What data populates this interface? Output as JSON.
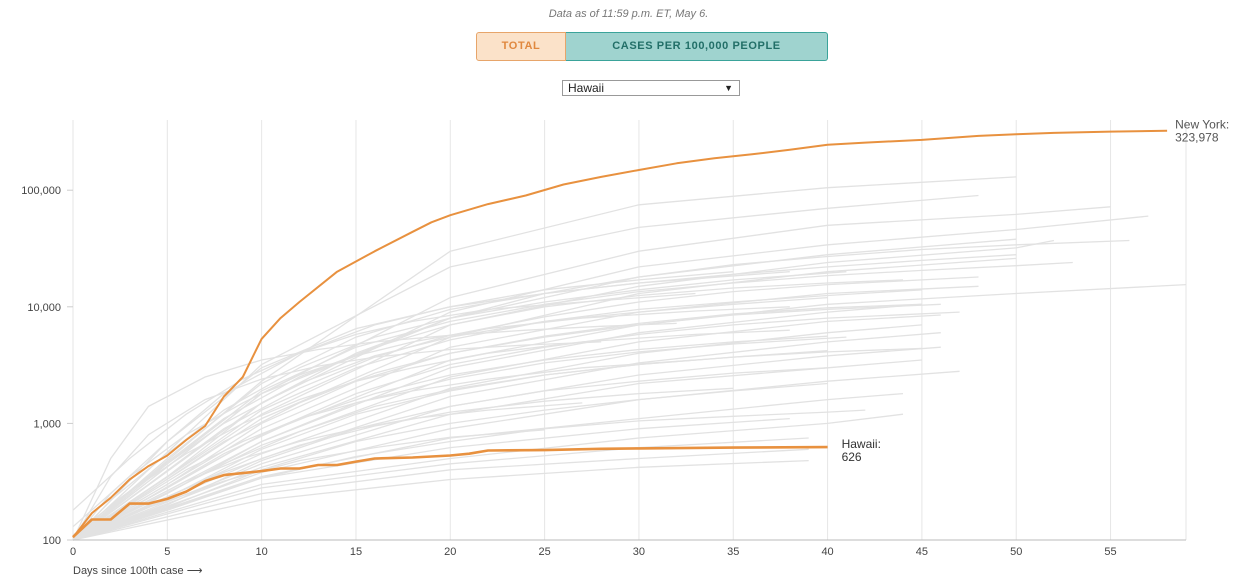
{
  "header": {
    "as_of": "Data as of 11:59 p.m. ET, May 6."
  },
  "toggle": {
    "total_label": "TOTAL",
    "per_capita_label": "CASES PER 100,000 PEOPLE",
    "active": "TOTAL",
    "colors": {
      "total": "#e0883e",
      "per_capita": "#226f68"
    }
  },
  "state_select": {
    "value": "Hawaii"
  },
  "chart_data": {
    "type": "line",
    "title": "",
    "xlabel": "Days since 100th case ⟶",
    "ylabel": "",
    "y_scale": "log",
    "xlim": [
      0,
      59
    ],
    "ylim": [
      100,
      400000
    ],
    "x_ticks": [
      0,
      5,
      10,
      15,
      20,
      25,
      30,
      35,
      40,
      45,
      50,
      55
    ],
    "y_ticks": [
      100,
      1000,
      10000,
      100000
    ],
    "y_tick_labels": [
      "100",
      "1,000",
      "10,000",
      "100,000"
    ],
    "grid": "vertical",
    "highlight_color": "#e8913f",
    "background_color": "#e2e2e2",
    "highlighted_series": [
      {
        "name": "New York",
        "end_label": "New York:",
        "end_value": "323,978",
        "x": [
          0,
          1,
          2,
          3,
          4,
          5,
          6,
          7,
          8,
          9,
          10,
          11,
          12,
          14,
          16,
          18,
          19,
          20,
          22,
          24,
          26,
          28,
          30,
          32,
          34,
          36,
          38,
          40,
          42,
          45,
          48,
          50,
          52,
          55,
          58
        ],
        "y": [
          105,
          170,
          230,
          330,
          430,
          530,
          720,
          950,
          1700,
          2500,
          5300,
          8000,
          11000,
          20000,
          30000,
          44000,
          53000,
          61000,
          76000,
          90000,
          112000,
          130000,
          149000,
          170000,
          188000,
          203000,
          222000,
          245000,
          256000,
          270000,
          292000,
          302000,
          310000,
          318000,
          323978
        ]
      },
      {
        "name": "Hawaii",
        "end_label": "Hawaii:",
        "end_value": "626",
        "x": [
          0,
          1,
          2,
          3,
          4,
          5,
          6,
          7,
          8,
          9,
          10,
          11,
          12,
          13,
          14,
          15,
          16,
          18,
          20,
          21,
          22,
          25,
          28,
          30,
          35,
          40
        ],
        "y": [
          106,
          150,
          150,
          205,
          205,
          225,
          260,
          320,
          360,
          375,
          390,
          410,
          410,
          440,
          440,
          470,
          500,
          510,
          530,
          550,
          585,
          590,
          605,
          610,
          620,
          626
        ]
      }
    ],
    "background_series": [
      {
        "x": [
          0,
          10,
          20,
          30,
          40,
          50
        ],
        "y": [
          100,
          2300,
          30000,
          75000,
          105000,
          130000
        ]
      },
      {
        "x": [
          0,
          10,
          20,
          30,
          40,
          48
        ],
        "y": [
          100,
          3200,
          22000,
          48000,
          70000,
          90000
        ]
      },
      {
        "x": [
          0,
          10,
          20,
          30,
          40,
          50,
          55
        ],
        "y": [
          100,
          1800,
          12000,
          30000,
          50000,
          62000,
          72000
        ]
      },
      {
        "x": [
          0,
          10,
          20,
          30,
          40,
          50,
          57
        ],
        "y": [
          100,
          1500,
          9000,
          22000,
          34000,
          46000,
          60000
        ]
      },
      {
        "x": [
          0,
          10,
          20,
          30,
          40,
          50
        ],
        "y": [
          100,
          1800,
          8000,
          18000,
          28000,
          38000
        ]
      },
      {
        "x": [
          0,
          10,
          20,
          30,
          40,
          50,
          52
        ],
        "y": [
          100,
          1200,
          7000,
          15000,
          24000,
          32000,
          37000
        ]
      },
      {
        "x": [
          0,
          10,
          20,
          30,
          40,
          50
        ],
        "y": [
          100,
          1100,
          5500,
          13000,
          20000,
          26000
        ]
      },
      {
        "x": [
          0,
          10,
          20,
          30,
          40,
          50,
          59
        ],
        "y": [
          100,
          800,
          3500,
          7000,
          10500,
          13000,
          15500
        ]
      },
      {
        "x": [
          0,
          10,
          20,
          30,
          40,
          48
        ],
        "y": [
          100,
          900,
          4500,
          9000,
          13000,
          15000
        ]
      },
      {
        "x": [
          0,
          10,
          20,
          30,
          40,
          45
        ],
        "y": [
          100,
          700,
          3000,
          6000,
          9000,
          10500
        ]
      },
      {
        "x": [
          0,
          10,
          20,
          30,
          40,
          46
        ],
        "y": [
          100,
          650,
          2500,
          5000,
          7500,
          8500
        ]
      },
      {
        "x": [
          0,
          10,
          20,
          30,
          40,
          45
        ],
        "y": [
          100,
          550,
          2000,
          4000,
          6000,
          7000
        ]
      },
      {
        "x": [
          0,
          10,
          20,
          30,
          40,
          46
        ],
        "y": [
          100,
          500,
          1700,
          3300,
          5000,
          6000
        ]
      },
      {
        "x": [
          0,
          10,
          20,
          30,
          40,
          46
        ],
        "y": [
          100,
          450,
          1400,
          2600,
          3800,
          4500
        ]
      },
      {
        "x": [
          0,
          10,
          20,
          30,
          40,
          45
        ],
        "y": [
          100,
          420,
          1200,
          2200,
          3000,
          3500
        ]
      },
      {
        "x": [
          0,
          10,
          20,
          30,
          40,
          47
        ],
        "y": [
          100,
          380,
          900,
          1600,
          2300,
          2800
        ]
      },
      {
        "x": [
          0,
          10,
          20,
          30,
          40,
          44
        ],
        "y": [
          100,
          350,
          750,
          1100,
          1600,
          1800
        ]
      },
      {
        "x": [
          0,
          10,
          20,
          30,
          38
        ],
        "y": [
          100,
          340,
          620,
          900,
          1100
        ]
      },
      {
        "x": [
          0,
          10,
          20,
          30,
          40,
          44
        ],
        "y": [
          100,
          300,
          500,
          750,
          1000,
          1200
        ]
      },
      {
        "x": [
          0,
          10,
          20,
          30,
          39
        ],
        "y": [
          100,
          280,
          450,
          620,
          750
        ]
      },
      {
        "x": [
          0,
          10,
          20,
          30,
          39
        ],
        "y": [
          100,
          250,
          400,
          500,
          600
        ]
      },
      {
        "x": [
          0,
          10,
          20,
          30,
          39
        ],
        "y": [
          100,
          220,
          330,
          420,
          480
        ]
      },
      {
        "x": [
          0,
          5,
          10,
          15,
          20,
          25,
          30,
          38
        ],
        "y": [
          100,
          700,
          3000,
          6500,
          10000,
          13000,
          16000,
          20000
        ]
      },
      {
        "x": [
          0,
          5,
          10,
          15,
          20,
          25,
          30,
          35,
          40,
          45,
          50
        ],
        "y": [
          100,
          500,
          2200,
          5500,
          9500,
          13000,
          16000,
          19000,
          22000,
          25000,
          28000
        ]
      },
      {
        "x": [
          0,
          5,
          10,
          15,
          20,
          25,
          30,
          35,
          40,
          45,
          50,
          53
        ],
        "y": [
          100,
          450,
          1900,
          4500,
          7500,
          10500,
          13500,
          16000,
          18500,
          20500,
          22500,
          24000
        ]
      },
      {
        "x": [
          0,
          5,
          10,
          15,
          20,
          25,
          30,
          35,
          40,
          45
        ],
        "y": [
          100,
          350,
          1300,
          3000,
          5200,
          7500,
          9500,
          11000,
          12500,
          14000
        ]
      },
      {
        "x": [
          0,
          5,
          10,
          15,
          20,
          25,
          30,
          35,
          40,
          46
        ],
        "y": [
          100,
          300,
          1000,
          2300,
          4000,
          5500,
          7000,
          8500,
          9500,
          10500
        ]
      },
      {
        "x": [
          0,
          5,
          10,
          15,
          20,
          25,
          30,
          35,
          40,
          47
        ],
        "y": [
          100,
          280,
          800,
          1800,
          3200,
          4500,
          5800,
          7000,
          8000,
          9000
        ]
      },
      {
        "x": [
          0,
          5,
          10,
          15,
          20,
          25,
          30,
          35,
          41
        ],
        "y": [
          100,
          250,
          700,
          1500,
          2400,
          3300,
          4100,
          4800,
          5500
        ]
      },
      {
        "x": [
          0,
          5,
          10,
          15,
          20,
          25,
          30,
          35,
          40
        ],
        "y": [
          100,
          230,
          600,
          1200,
          1900,
          2600,
          3200,
          3700,
          4200
        ]
      },
      {
        "x": [
          0,
          5,
          10,
          15,
          20,
          25,
          30,
          35,
          40
        ],
        "y": [
          100,
          200,
          480,
          900,
          1400,
          1900,
          2300,
          2700,
          3000
        ]
      },
      {
        "x": [
          0,
          5,
          10,
          15,
          20,
          25,
          30,
          35,
          40
        ],
        "y": [
          100,
          190,
          400,
          700,
          1000,
          1300,
          1600,
          1900,
          2200
        ]
      },
      {
        "x": [
          0,
          5,
          10,
          15,
          20,
          25,
          30,
          35,
          40,
          42
        ],
        "y": [
          100,
          180,
          340,
          520,
          700,
          900,
          1050,
          1150,
          1250,
          1300
        ]
      },
      {
        "x": [
          0,
          2,
          5,
          8,
          12,
          16,
          20,
          25,
          30,
          35
        ],
        "y": [
          100,
          250,
          700,
          1800,
          4000,
          7000,
          10000,
          14000,
          17000,
          20000
        ]
      },
      {
        "x": [
          0,
          2,
          5,
          8,
          12,
          16,
          20,
          25,
          30,
          35,
          41
        ],
        "y": [
          100,
          220,
          550,
          1300,
          3000,
          5500,
          8000,
          11000,
          14000,
          17000,
          20000
        ]
      },
      {
        "x": [
          0,
          2,
          5,
          8,
          12,
          16,
          20,
          25,
          30,
          35,
          40
        ],
        "y": [
          100,
          200,
          450,
          1000,
          2200,
          3800,
          5500,
          7500,
          9000,
          10500,
          12000
        ]
      },
      {
        "x": [
          0,
          3,
          6,
          9,
          12,
          15,
          18,
          22,
          27,
          33
        ],
        "y": [
          180,
          500,
          1200,
          2400,
          4000,
          5800,
          7500,
          9500,
          11000,
          13000
        ]
      },
      {
        "x": [
          0,
          3,
          6,
          9,
          12,
          15,
          18,
          22,
          27,
          33,
          38
        ],
        "y": [
          130,
          350,
          800,
          1500,
          2600,
          3800,
          5000,
          6500,
          8000,
          9200,
          10000
        ]
      },
      {
        "x": [
          0,
          3,
          6,
          9,
          12,
          15,
          18,
          22,
          27,
          33,
          38
        ],
        "y": [
          110,
          260,
          550,
          1000,
          1600,
          2300,
          3000,
          4000,
          5000,
          5800,
          6300
        ]
      },
      {
        "x": [
          0,
          3,
          6,
          9,
          12,
          15,
          18,
          22,
          27,
          33
        ],
        "y": [
          100,
          200,
          400,
          700,
          1100,
          1500,
          1900,
          2400,
          3000,
          3500
        ]
      },
      {
        "x": [
          0,
          3,
          6,
          9,
          12,
          15,
          18,
          22,
          27
        ],
        "y": [
          100,
          180,
          320,
          500,
          700,
          900,
          1100,
          1300,
          1500
        ]
      },
      {
        "x": [
          0,
          2,
          4,
          7,
          10,
          13,
          16,
          20,
          24,
          28,
          32
        ],
        "y": [
          100,
          500,
          1400,
          2500,
          3500,
          4300,
          5000,
          5700,
          6300,
          6800,
          7200
        ]
      },
      {
        "x": [
          0,
          2,
          4,
          7,
          10,
          13,
          16,
          20,
          24,
          28
        ],
        "y": [
          100,
          350,
          800,
          1600,
          2400,
          3100,
          3700,
          4300,
          4700,
          5000
        ]
      },
      {
        "x": [
          0,
          4,
          8,
          12,
          16,
          20,
          25,
          30,
          35,
          40,
          44
        ],
        "y": [
          100,
          350,
          1100,
          2500,
          4500,
          7000,
          10000,
          12500,
          14500,
          16000,
          17000
        ]
      },
      {
        "x": [
          0,
          4,
          8,
          12,
          16,
          20,
          25,
          30,
          35,
          40,
          45,
          48
        ],
        "y": [
          100,
          300,
          900,
          2000,
          3700,
          5700,
          8200,
          11000,
          13500,
          15500,
          17000,
          18000
        ]
      },
      {
        "x": [
          0,
          4,
          8,
          12,
          16,
          20,
          25,
          30,
          35,
          40,
          45
        ],
        "y": [
          100,
          260,
          700,
          1500,
          2700,
          4000,
          5600,
          7200,
          8700,
          9800,
          10500
        ]
      },
      {
        "x": [
          0,
          4,
          8,
          12,
          16,
          20,
          25,
          30,
          35,
          40
        ],
        "y": [
          100,
          230,
          550,
          1100,
          1800,
          2600,
          3500,
          4300,
          5000,
          5600
        ]
      },
      {
        "x": [
          0,
          4,
          8,
          12,
          16,
          20,
          25,
          30,
          35,
          40,
          45
        ],
        "y": [
          100,
          210,
          450,
          850,
          1400,
          1950,
          2600,
          3200,
          3700,
          4100,
          4400
        ]
      },
      {
        "x": [
          0,
          4,
          8,
          12,
          16,
          20,
          25,
          30,
          35
        ],
        "y": [
          100,
          200,
          380,
          650,
          950,
          1250,
          1550,
          1800,
          2000
        ]
      },
      {
        "x": [
          0,
          4,
          8,
          12,
          16,
          20,
          25
        ],
        "y": [
          100,
          190,
          320,
          480,
          620,
          760,
          880
        ]
      },
      {
        "x": [
          0,
          5,
          10,
          15,
          20,
          25,
          30,
          35,
          40,
          45,
          50,
          56
        ],
        "y": [
          100,
          350,
          1500,
          4000,
          8000,
          13000,
          18000,
          23000,
          27000,
          31000,
          34000,
          37000
        ]
      }
    ]
  }
}
